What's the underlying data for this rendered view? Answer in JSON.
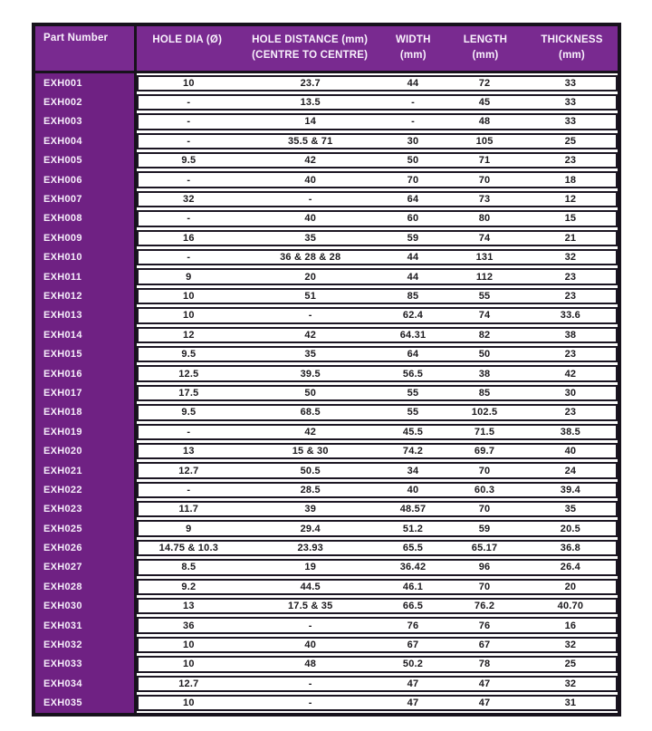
{
  "table": {
    "headers": {
      "part": "Part Number",
      "hole_dia": "HOLE DIA (Ø)",
      "hole_distance_1": "HOLE DISTANCE (mm)",
      "hole_distance_2": "(CENTRE TO CENTRE)",
      "width_1": "WIDTH",
      "width_2": "(mm)",
      "length_1": "LENGTH",
      "length_2": "(mm)",
      "thickness_1": "THICKNESS",
      "thickness_2": "(mm)"
    },
    "rows": [
      [
        "EXH001",
        "10",
        "23.7",
        "44",
        "72",
        "33"
      ],
      [
        "EXH002",
        "-",
        "13.5",
        "-",
        "45",
        "33"
      ],
      [
        "EXH003",
        "-",
        "14",
        "-",
        "48",
        "33"
      ],
      [
        "EXH004",
        "-",
        "35.5 & 71",
        "30",
        "105",
        "25"
      ],
      [
        "EXH005",
        "9.5",
        "42",
        "50",
        "71",
        "23"
      ],
      [
        "EXH006",
        "-",
        "40",
        "70",
        "70",
        "18"
      ],
      [
        "EXH007",
        "32",
        "-",
        "64",
        "73",
        "12"
      ],
      [
        "EXH008",
        "-",
        "40",
        "60",
        "80",
        "15"
      ],
      [
        "EXH009",
        "16",
        "35",
        "59",
        "74",
        "21"
      ],
      [
        "EXH010",
        "-",
        "36 & 28 & 28",
        "44",
        "131",
        "32"
      ],
      [
        "EXH011",
        "9",
        "20",
        "44",
        "112",
        "23"
      ],
      [
        "EXH012",
        "10",
        "51",
        "85",
        "55",
        "23"
      ],
      [
        "EXH013",
        "10",
        "-",
        "62.4",
        "74",
        "33.6"
      ],
      [
        "EXH014",
        "12",
        "42",
        "64.31",
        "82",
        "38"
      ],
      [
        "EXH015",
        "9.5",
        "35",
        "64",
        "50",
        "23"
      ],
      [
        "EXH016",
        "12.5",
        "39.5",
        "56.5",
        "38",
        "42"
      ],
      [
        "EXH017",
        "17.5",
        "50",
        "55",
        "85",
        "30"
      ],
      [
        "EXH018",
        "9.5",
        "68.5",
        "55",
        "102.5",
        "23"
      ],
      [
        "EXH019",
        "-",
        "42",
        "45.5",
        "71.5",
        "38.5"
      ],
      [
        "EXH020",
        "13",
        "15 & 30",
        "74.2",
        "69.7",
        "40"
      ],
      [
        "EXH021",
        "12.7",
        "50.5",
        "34",
        "70",
        "24"
      ],
      [
        "EXH022",
        "-",
        "28.5",
        "40",
        "60.3",
        "39.4"
      ],
      [
        "EXH023",
        "11.7",
        "39",
        "48.57",
        "70",
        "35"
      ],
      [
        "EXH025",
        "9",
        "29.4",
        "51.2",
        "59",
        "20.5"
      ],
      [
        "EXH026",
        "14.75 & 10.3",
        "23.93",
        "65.5",
        "65.17",
        "36.8"
      ],
      [
        "EXH027",
        "8.5",
        "19",
        "36.42",
        "96",
        "26.4"
      ],
      [
        "EXH028",
        "9.2",
        "44.5",
        "46.1",
        "70",
        "20"
      ],
      [
        "EXH030",
        "13",
        "17.5 & 35",
        "66.5",
        "76.2",
        "40.70"
      ],
      [
        "EXH031",
        "36",
        "-",
        "76",
        "76",
        "16"
      ],
      [
        "EXH032",
        "10",
        "40",
        "67",
        "67",
        "32"
      ],
      [
        "EXH033",
        "10",
        "48",
        "50.2",
        "78",
        "25"
      ],
      [
        "EXH034",
        "12.7",
        "-",
        "47",
        "47",
        "32"
      ],
      [
        "EXH035",
        "10",
        "-",
        "47",
        "47",
        "31"
      ]
    ],
    "colors": {
      "header_purple": "#792a90",
      "column_purple": "#6f2183",
      "border_black": "#17121c",
      "data_text": "#1c1a1e",
      "text_on_purple": "#f6eefb"
    }
  }
}
